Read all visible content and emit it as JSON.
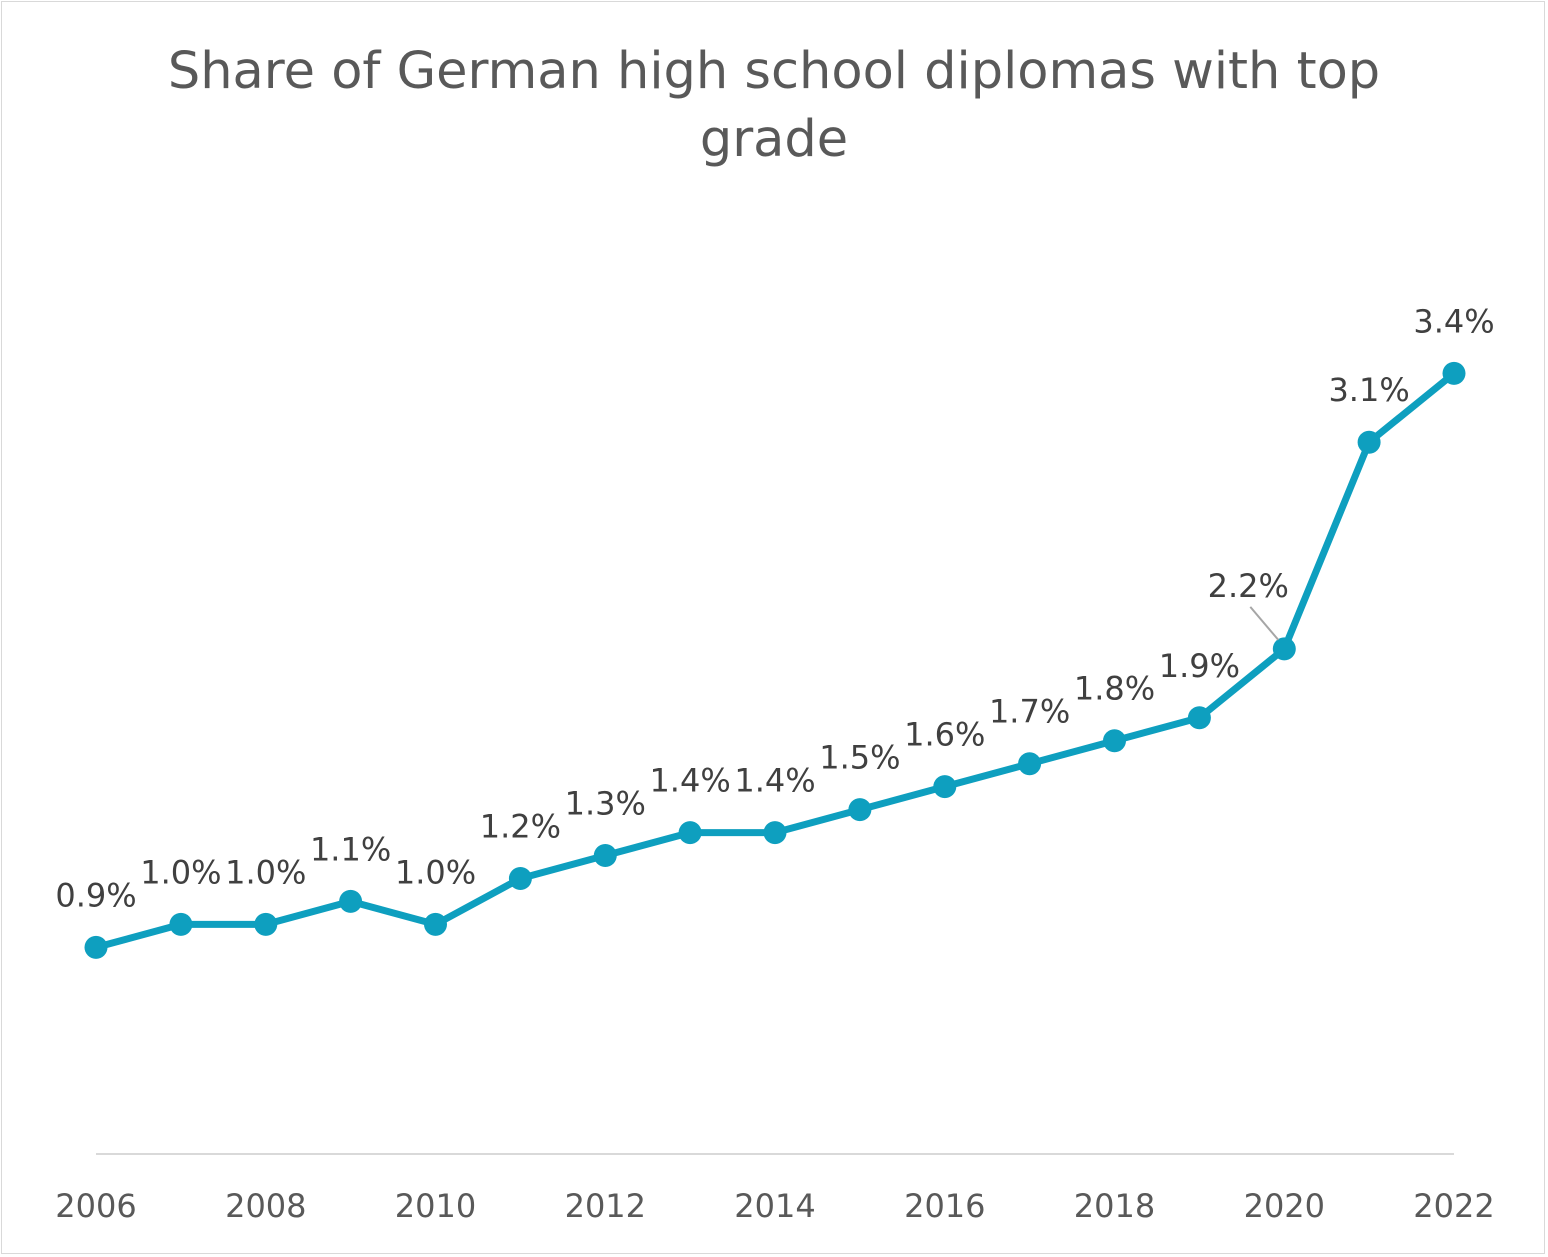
{
  "chart_data": {
    "type": "line",
    "title": "Share of German high school diplomas with top grade",
    "xlabel": "",
    "ylabel": "",
    "x": [
      2006,
      2007,
      2008,
      2009,
      2010,
      2011,
      2012,
      2013,
      2014,
      2015,
      2016,
      2017,
      2018,
      2019,
      2020,
      2021,
      2022
    ],
    "x_tick_labels": [
      "2006",
      "2008",
      "2010",
      "2012",
      "2014",
      "2016",
      "2018",
      "2020",
      "2022"
    ],
    "series": [
      {
        "values": [
          0.9,
          1.0,
          1.0,
          1.1,
          1.0,
          1.2,
          1.3,
          1.4,
          1.4,
          1.5,
          1.6,
          1.7,
          1.8,
          1.9,
          2.2,
          3.1,
          3.4
        ],
        "labels": [
          "0.9%",
          "1.0%",
          "1.0%",
          "1.1%",
          "1.0%",
          "1.2%",
          "1.3%",
          "1.4%",
          "1.4%",
          "1.5%",
          "1.6%",
          "1.7%",
          "1.8%",
          "1.9%",
          "2.2%",
          "3.1%",
          "3.4%"
        ],
        "color": "#0e9fbf"
      }
    ],
    "ylim": [
      0,
      3.9
    ],
    "grid": false,
    "legend": "none",
    "axis_color": "#d9d9d9",
    "leader_line_color": "#a6a6a6"
  }
}
